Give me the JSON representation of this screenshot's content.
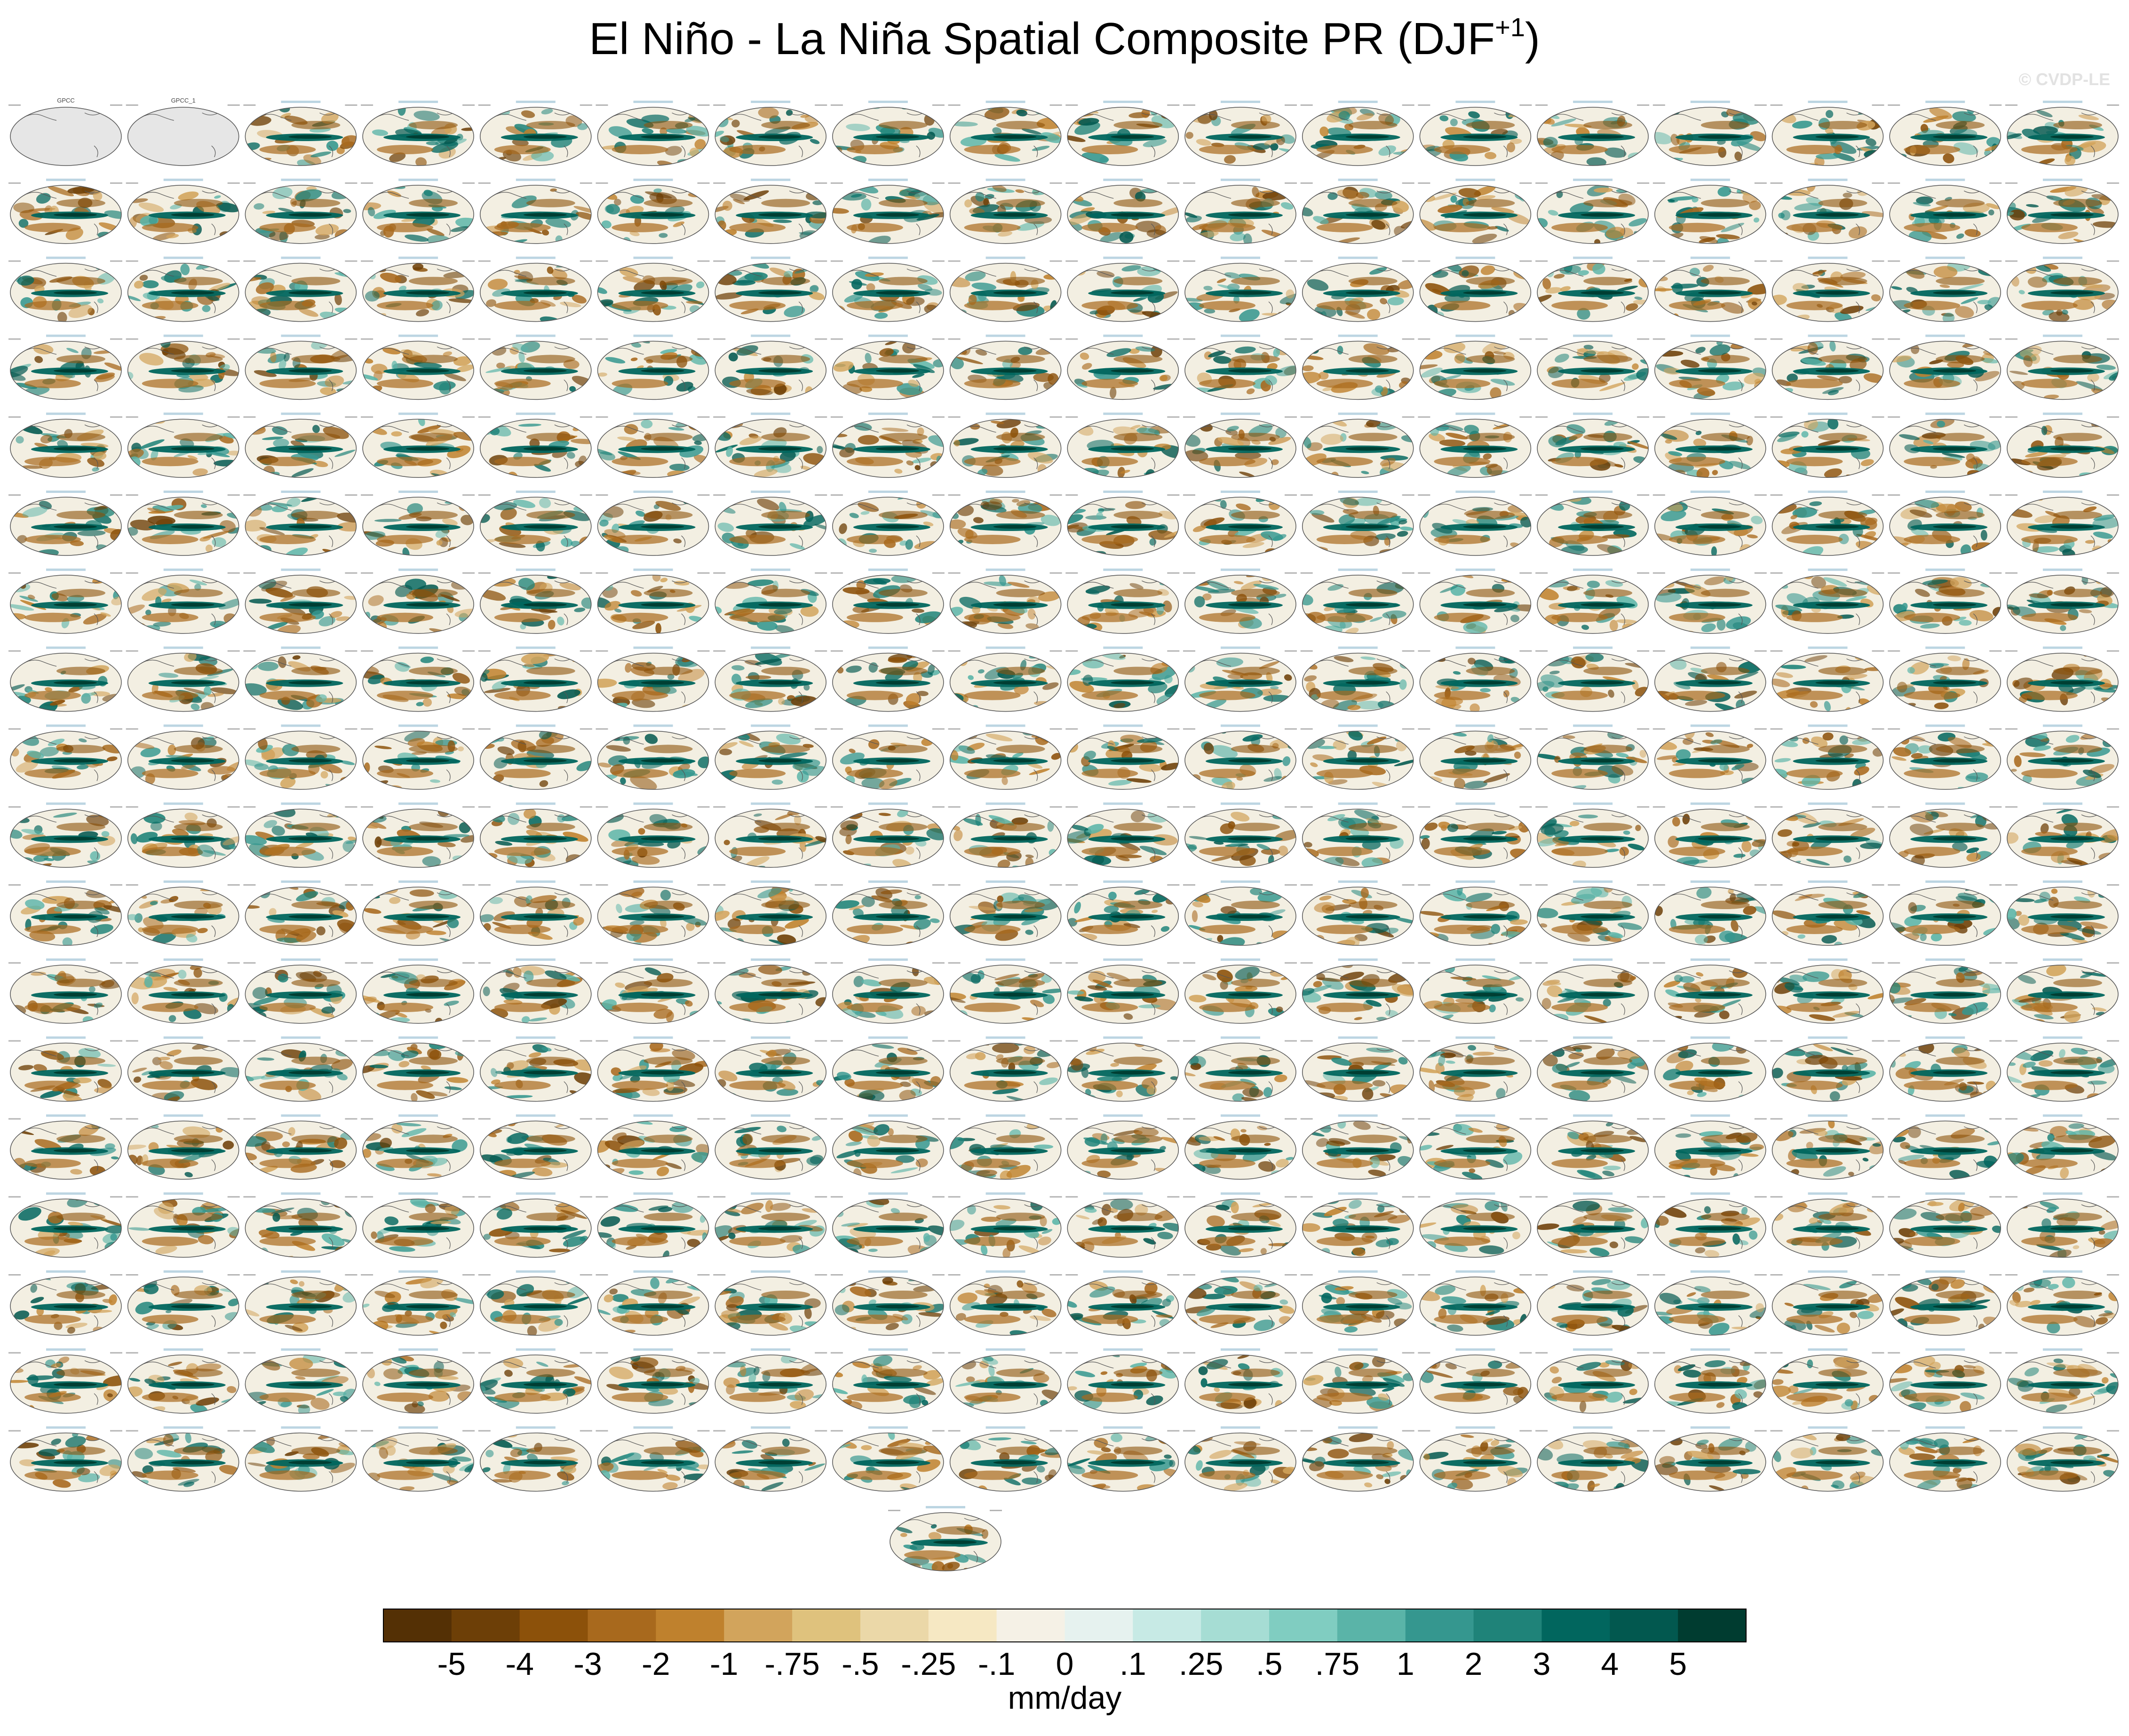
{
  "title": {
    "text": "El Niño - La Niña Spatial Composite PR (DJF",
    "superscript": "+1",
    "closing": ")"
  },
  "watermark": "© CVDP-LE",
  "chart_data": {
    "type": "heatmap",
    "title": "El Niño - La Niña Spatial Composite PR (DJF+1)",
    "grid": {
      "rows": 18,
      "columns": 18,
      "extra_panels_below": 1
    },
    "observation_panel_titles": [
      "GPCC",
      "GPCC_1"
    ],
    "projection": "Robinson (Pacific-centered)",
    "colorbar": {
      "units_label": "mm/day",
      "levels": [
        "-5",
        "-4",
        "-3",
        "-2",
        "-1",
        "-.75",
        "-.5",
        "-.25",
        "-.1",
        "0",
        ".1",
        ".25",
        ".5",
        ".75",
        "1",
        "2",
        "3",
        "4",
        "5"
      ],
      "colors": [
        "#543005",
        "#6d3f07",
        "#8c510a",
        "#a8691d",
        "#bf812d",
        "#d2a45c",
        "#dfc27d",
        "#ebd8a8",
        "#f6e8c3",
        "#f5f1e6",
        "#e6f2ef",
        "#c7eae5",
        "#a6ddd4",
        "#80cdc1",
        "#5ab4a8",
        "#35978f",
        "#1f8379",
        "#01665e",
        "#02584f",
        "#003c30"
      ]
    }
  }
}
